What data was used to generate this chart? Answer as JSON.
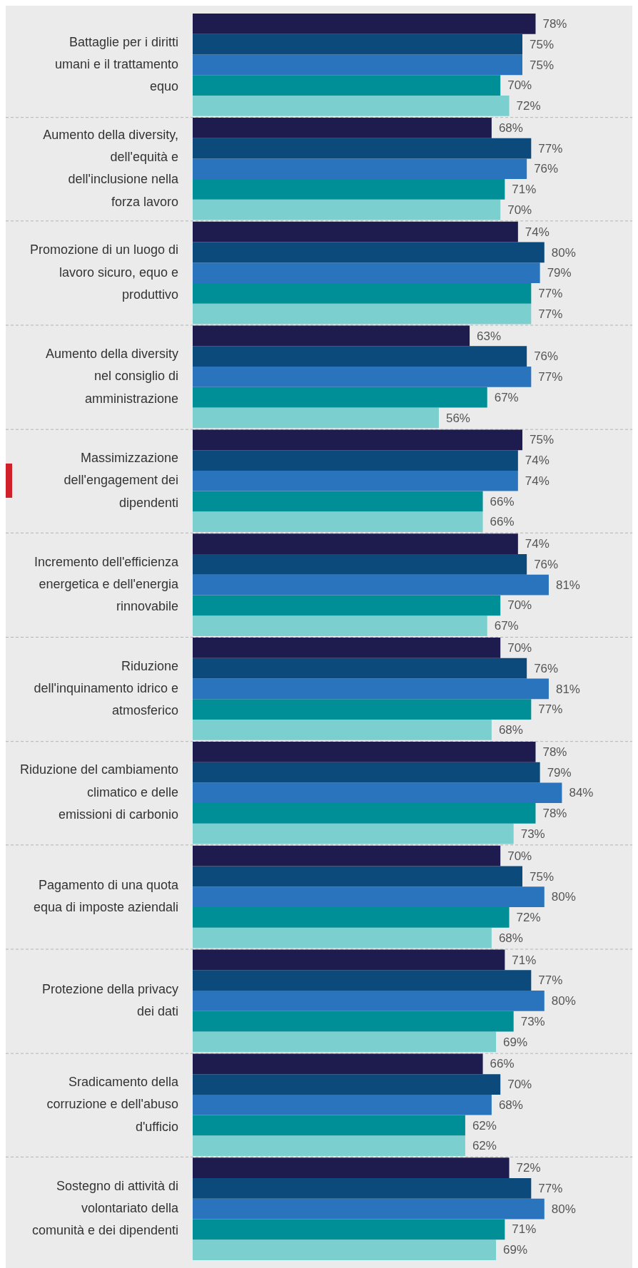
{
  "chart_data": {
    "type": "bar",
    "orientation": "horizontal",
    "xlim": [
      0,
      100
    ],
    "tick_labels": "y",
    "grid": "y",
    "legend": false,
    "categories": [
      "Battaglie per i diritti umani e il trattamento equo",
      "Aumento della diversity, dell'equità e dell'inclusione nella forza lavoro",
      "Promozione di un luogo di lavoro sicuro, equo e produttivo",
      "Aumento della diversity nel consiglio di amministrazione",
      "Massimizzazione dell'engagement dei dipendenti",
      "Incremento dell'efficienza energetica e dell'energia rinnovabile",
      "Riduzione dell'inquinamento idrico e atmosferico",
      "Riduzione del cambiamento climatico e delle emissioni di carbonio",
      "Pagamento di una quota equa di imposte aziendali",
      "Protezione della privacy dei dati",
      "Sradicamento della corruzione e dell'abuso d'ufficio",
      "Sostegno di attività di volontariato della comunità e dei dipendenti"
    ],
    "series": [
      {
        "color": "#1e1c4e",
        "values": [
          78,
          68,
          74,
          63,
          75,
          74,
          70,
          78,
          70,
          71,
          66,
          72
        ],
        "value_labels": [
          "78%",
          "68%",
          "74%",
          "63%",
          "75%",
          "74%",
          "70%",
          "78%",
          "70%",
          "71%",
          "66%",
          "72%"
        ]
      },
      {
        "color": "#0b4a7b",
        "values": [
          75,
          77,
          80,
          76,
          74,
          76,
          76,
          79,
          75,
          77,
          70,
          77
        ],
        "value_labels": [
          "75%",
          "77%",
          "80%",
          "76%",
          "74%",
          "76%",
          "76%",
          "79%",
          "75%",
          "77%",
          "70%",
          "77%"
        ]
      },
      {
        "color": "#2a74be",
        "values": [
          75,
          76,
          79,
          77,
          74,
          81,
          81,
          84,
          80,
          80,
          68,
          80
        ],
        "value_labels": [
          "75%",
          "76%",
          "79%",
          "77%",
          "74%",
          "81%",
          "81%",
          "84%",
          "80%",
          "80%",
          "68%",
          "80%"
        ]
      },
      {
        "color": "#008f96",
        "values": [
          70,
          71,
          77,
          67,
          66,
          70,
          77,
          78,
          72,
          73,
          62,
          71
        ],
        "value_labels": [
          "70%",
          "71%",
          "77%",
          "67%",
          "66%",
          "70%",
          "77%",
          "78%",
          "72%",
          "73%",
          "62%",
          "71%"
        ]
      },
      {
        "color": "#7ccfcf",
        "values": [
          72,
          70,
          77,
          56,
          66,
          67,
          68,
          73,
          68,
          69,
          62,
          69
        ],
        "value_labels": [
          "72%",
          "70%",
          "77%",
          "56%",
          "66%",
          "67%",
          "68%",
          "73%",
          "68%",
          "69%",
          "62%",
          "69%"
        ]
      }
    ]
  }
}
